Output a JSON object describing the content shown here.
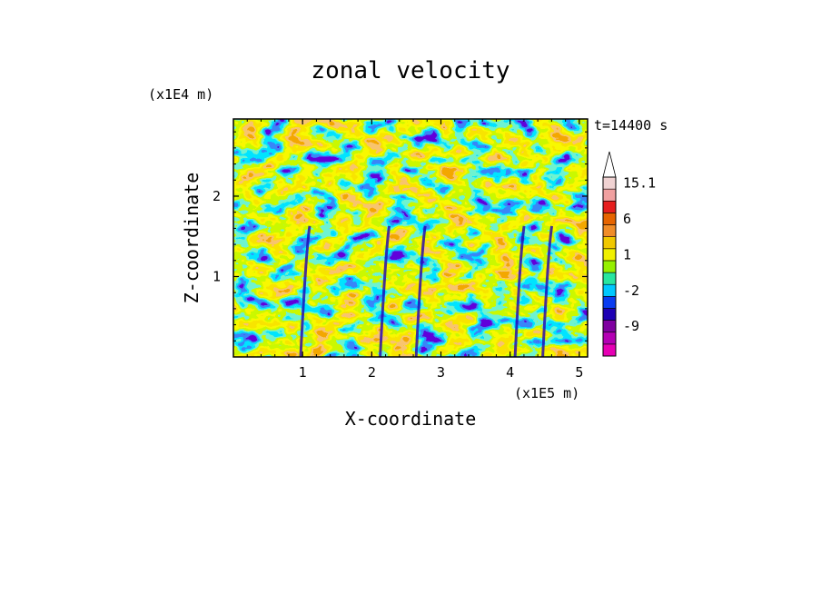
{
  "chart_data": {
    "type": "heatmap",
    "title": "zonal velocity",
    "xlabel": "X-coordinate",
    "ylabel": "Z-coordinate",
    "x_scale_note": "(x1E5 m)",
    "y_scale_note": "(x1E4 m)",
    "time_label": "t=14400 s",
    "xlim": [
      0.0,
      5.12
    ],
    "ylim": [
      0.0,
      2.96
    ],
    "x_ticks": [
      {
        "value": 1,
        "label": "1"
      },
      {
        "value": 2,
        "label": "2"
      },
      {
        "value": 3,
        "label": "3"
      },
      {
        "value": 4,
        "label": "4"
      },
      {
        "value": 5,
        "label": "5"
      }
    ],
    "y_ticks": [
      {
        "value": 1,
        "label": "1"
      },
      {
        "value": 2,
        "label": "2"
      }
    ],
    "colorbar": {
      "levels": [
        -15.1,
        -12,
        -9,
        -6,
        -4,
        -2,
        -1,
        0,
        1,
        2,
        4,
        6,
        9,
        12,
        15.1
      ],
      "colors": [
        "#e600b4",
        "#b400b4",
        "#7f00a0",
        "#1e00b4",
        "#0a3cf0",
        "#00c8ff",
        "#28e6a0",
        "#96f000",
        "#f0f000",
        "#f0c800",
        "#f08c28",
        "#e66400",
        "#e61e1e",
        "#f0a0a0",
        "#f0d2d2"
      ],
      "labels": [
        {
          "value": 15.1,
          "label": "15.1"
        },
        {
          "value": 6,
          "label": "6"
        },
        {
          "value": 1,
          "label": "1"
        },
        {
          "value": -2,
          "label": "-2"
        },
        {
          "value": -9,
          "label": "-9"
        }
      ],
      "extend": "max"
    },
    "field_note": "Turbulent zonal-velocity field; values mostly between -2 and 6, with negative (blue) filaments and positive (orange/red) patches."
  }
}
